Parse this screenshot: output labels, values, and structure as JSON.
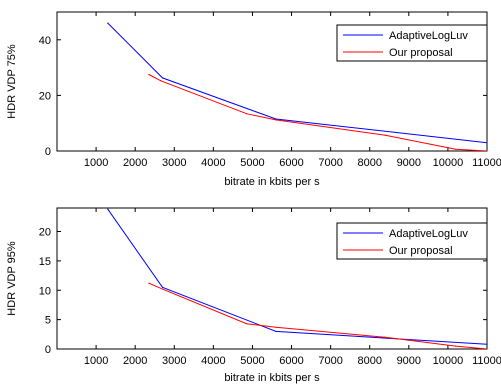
{
  "chart_data": [
    {
      "type": "line",
      "xlabel": "bitrate in kbits per s",
      "ylabel": "HDR VDP 75%",
      "xlim": [
        0,
        11000
      ],
      "ylim": [
        0,
        50
      ],
      "xticks": [
        "1000",
        "2000",
        "3000",
        "4000",
        "5000",
        "6000",
        "7000",
        "8000",
        "9000",
        "10000",
        "11000"
      ],
      "yticks": [
        "0",
        "20",
        "40"
      ],
      "grid": false,
      "legend_position": "top-right",
      "series": [
        {
          "name": "AdaptiveLogLuv",
          "color": "#0000ff",
          "x": [
            1300,
            2700,
            5600,
            11000
          ],
          "y": [
            46,
            26.3,
            11.5,
            3.0
          ]
        },
        {
          "name": "Our proposal",
          "color": "#ff0000",
          "x": [
            2350,
            2650,
            4850,
            5600,
            8400,
            10200,
            11000
          ],
          "y": [
            27.5,
            25.3,
            13.4,
            11.2,
            5.7,
            0.6,
            0
          ]
        }
      ]
    },
    {
      "type": "line",
      "xlabel": "bitrate in kbits per s",
      "ylabel": "HDR VDP 95%",
      "xlim": [
        0,
        11000
      ],
      "ylim": [
        0,
        24
      ],
      "xticks": [
        "1000",
        "2000",
        "3000",
        "4000",
        "5000",
        "6000",
        "7000",
        "8000",
        "9000",
        "10000",
        "11000"
      ],
      "yticks": [
        "0",
        "5",
        "10",
        "15",
        "20"
      ],
      "grid": false,
      "legend_position": "top-right",
      "series": [
        {
          "name": "AdaptiveLogLuv",
          "color": "#0000ff",
          "x": [
            1300,
            2700,
            5600,
            11000
          ],
          "y": [
            23.8,
            10.5,
            3.0,
            0.8
          ]
        },
        {
          "name": "Our proposal",
          "color": "#ff0000",
          "x": [
            2350,
            2700,
            4850,
            5600,
            8400,
            10200,
            11000
          ],
          "y": [
            11.2,
            10.2,
            4.3,
            3.7,
            2.0,
            0.5,
            0
          ]
        }
      ]
    }
  ]
}
